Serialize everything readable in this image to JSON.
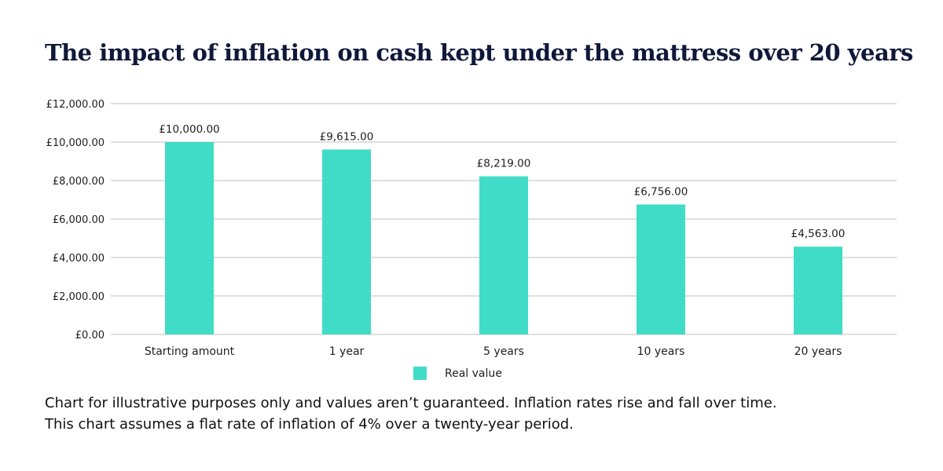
{
  "colors": {
    "bar": "#40dcc7",
    "grid": "#bfbfbf",
    "title": "#10183a"
  },
  "chart_data": {
    "type": "bar",
    "title": "The impact of inflation on cash kept under the mattress over 20 years",
    "categories": [
      "Starting amount",
      "1 year",
      "5 years",
      "10 years",
      "20 years"
    ],
    "series": [
      {
        "name": "Real value",
        "values": [
          10000,
          9615,
          8219,
          6756,
          4563
        ]
      }
    ],
    "data_labels": [
      "£10,000.00",
      "£9,615.00",
      "£8,219.00",
      "£6,756.00",
      "£4,563.00"
    ],
    "y_ticks": [
      0,
      2000,
      4000,
      6000,
      8000,
      10000,
      12000
    ],
    "y_tick_labels": [
      "£0.00",
      "£2,000.00",
      "£4,000.00",
      "£6,000.00",
      "£8,000.00",
      "£10,000.00",
      "£12,000.00"
    ],
    "ylim": [
      0,
      12000
    ],
    "xlabel": "",
    "ylabel": "",
    "grid": true,
    "legend_position": "bottom-center"
  },
  "footnote": {
    "line1": "Chart for illustrative purposes only and values aren’t guaranteed. Inflation rates rise and fall over time.",
    "line2": "This chart assumes a flat rate of inflation of 4% over a twenty-year period."
  }
}
